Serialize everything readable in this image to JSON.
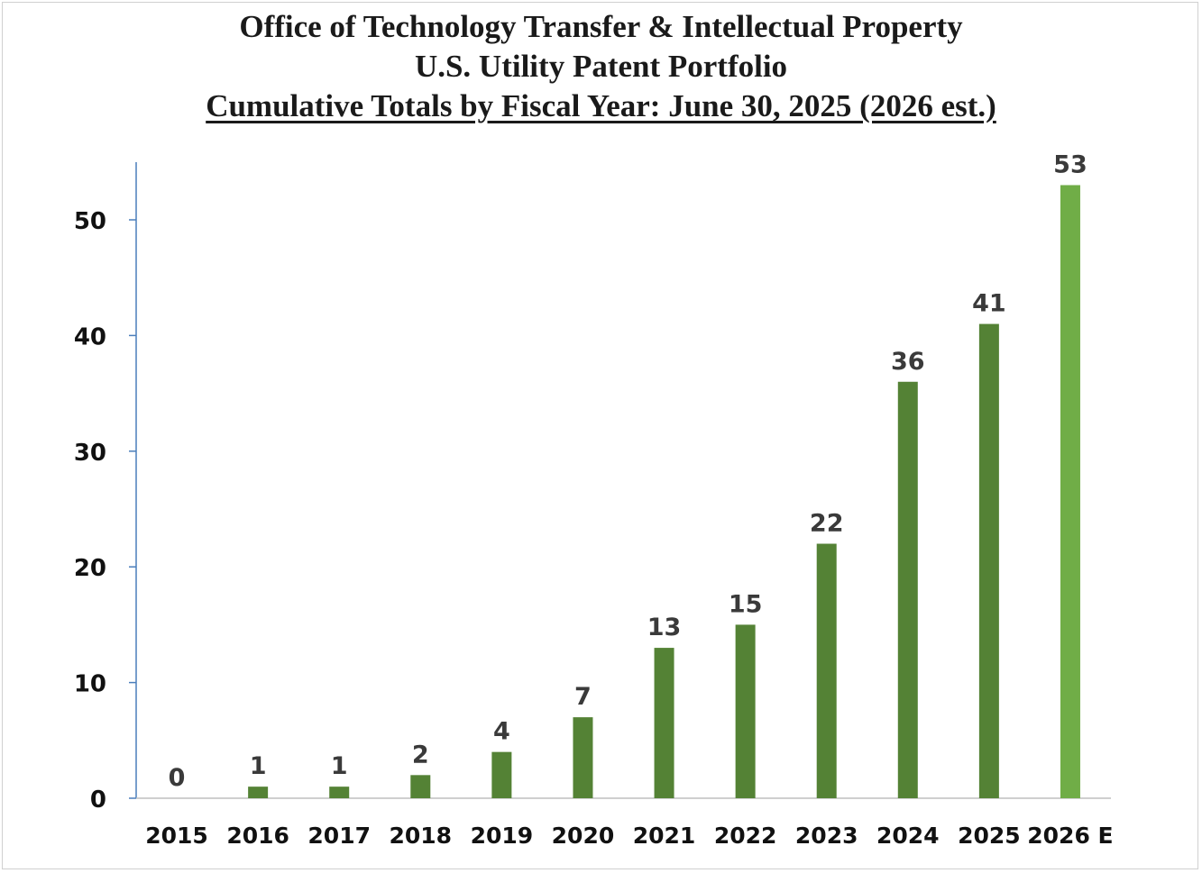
{
  "chart_data": {
    "type": "bar",
    "title": "Office of  Technology Transfer & Intellectual Property",
    "subtitle": "U.S. Utility Patent Portfolio",
    "subtitle2": "Cumulative Totals by Fiscal Year: June 30, 2025 (2026 est.)",
    "categories": [
      "2015",
      "2016",
      "2017",
      "2018",
      "2019",
      "2020",
      "2021",
      "2022",
      "2023",
      "2024",
      "2025",
      "2026 E"
    ],
    "values": [
      0,
      1,
      1,
      2,
      4,
      7,
      13,
      15,
      22,
      36,
      41,
      53
    ],
    "estimated": [
      false,
      false,
      false,
      false,
      false,
      false,
      false,
      false,
      false,
      false,
      false,
      true
    ],
    "ylim": [
      0,
      55
    ],
    "yticks": [
      0,
      10,
      20,
      30,
      40,
      50
    ],
    "xlabel": "",
    "ylabel": "",
    "grid": false,
    "colors": {
      "actual": "#548235",
      "estimate": "#70ad47",
      "axis": "#4a7ebb"
    }
  }
}
